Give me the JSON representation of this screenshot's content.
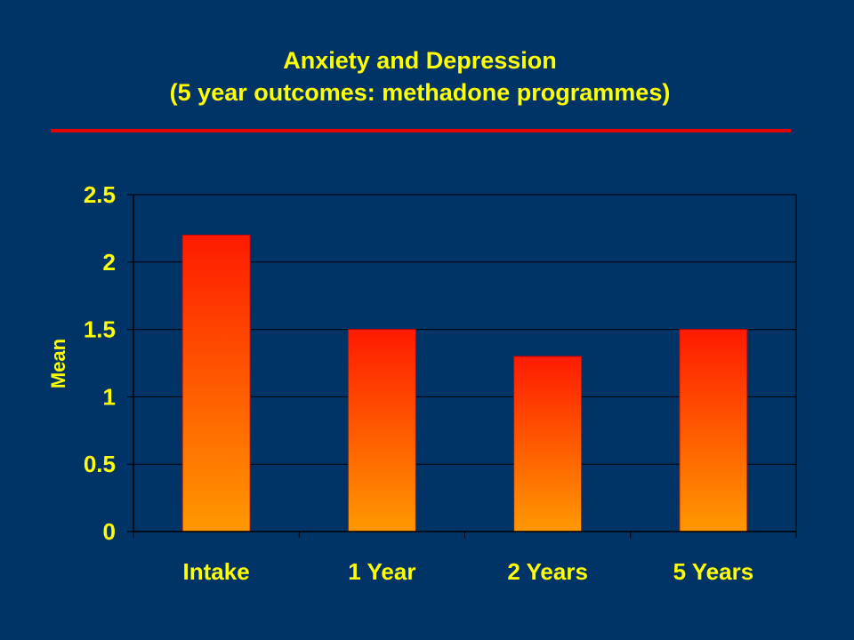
{
  "slide": {
    "title_line1": "Anxiety and Depression",
    "title_line2": "(5 year outcomes: methadone programmes)"
  },
  "colors": {
    "background": "#003366",
    "title": "#ffff00",
    "rule": "#e60000",
    "bar_top": "#ff1a00",
    "bar_bottom": "#ff9900",
    "gridline": "#000000"
  },
  "chart_data": {
    "type": "bar",
    "categories": [
      "Intake",
      "1 Year",
      "2 Years",
      "5 Years"
    ],
    "values": [
      2.2,
      1.5,
      1.3,
      1.5
    ],
    "ylabel": "Mean",
    "xlabel": "",
    "ylim": [
      0,
      2.5
    ],
    "yticks": [
      0,
      0.5,
      1,
      1.5,
      2,
      2.5
    ],
    "ytick_labels": [
      "0",
      "0.5",
      "1",
      "1.5",
      "2",
      "2.5"
    ],
    "grid": true,
    "legend": "none"
  }
}
